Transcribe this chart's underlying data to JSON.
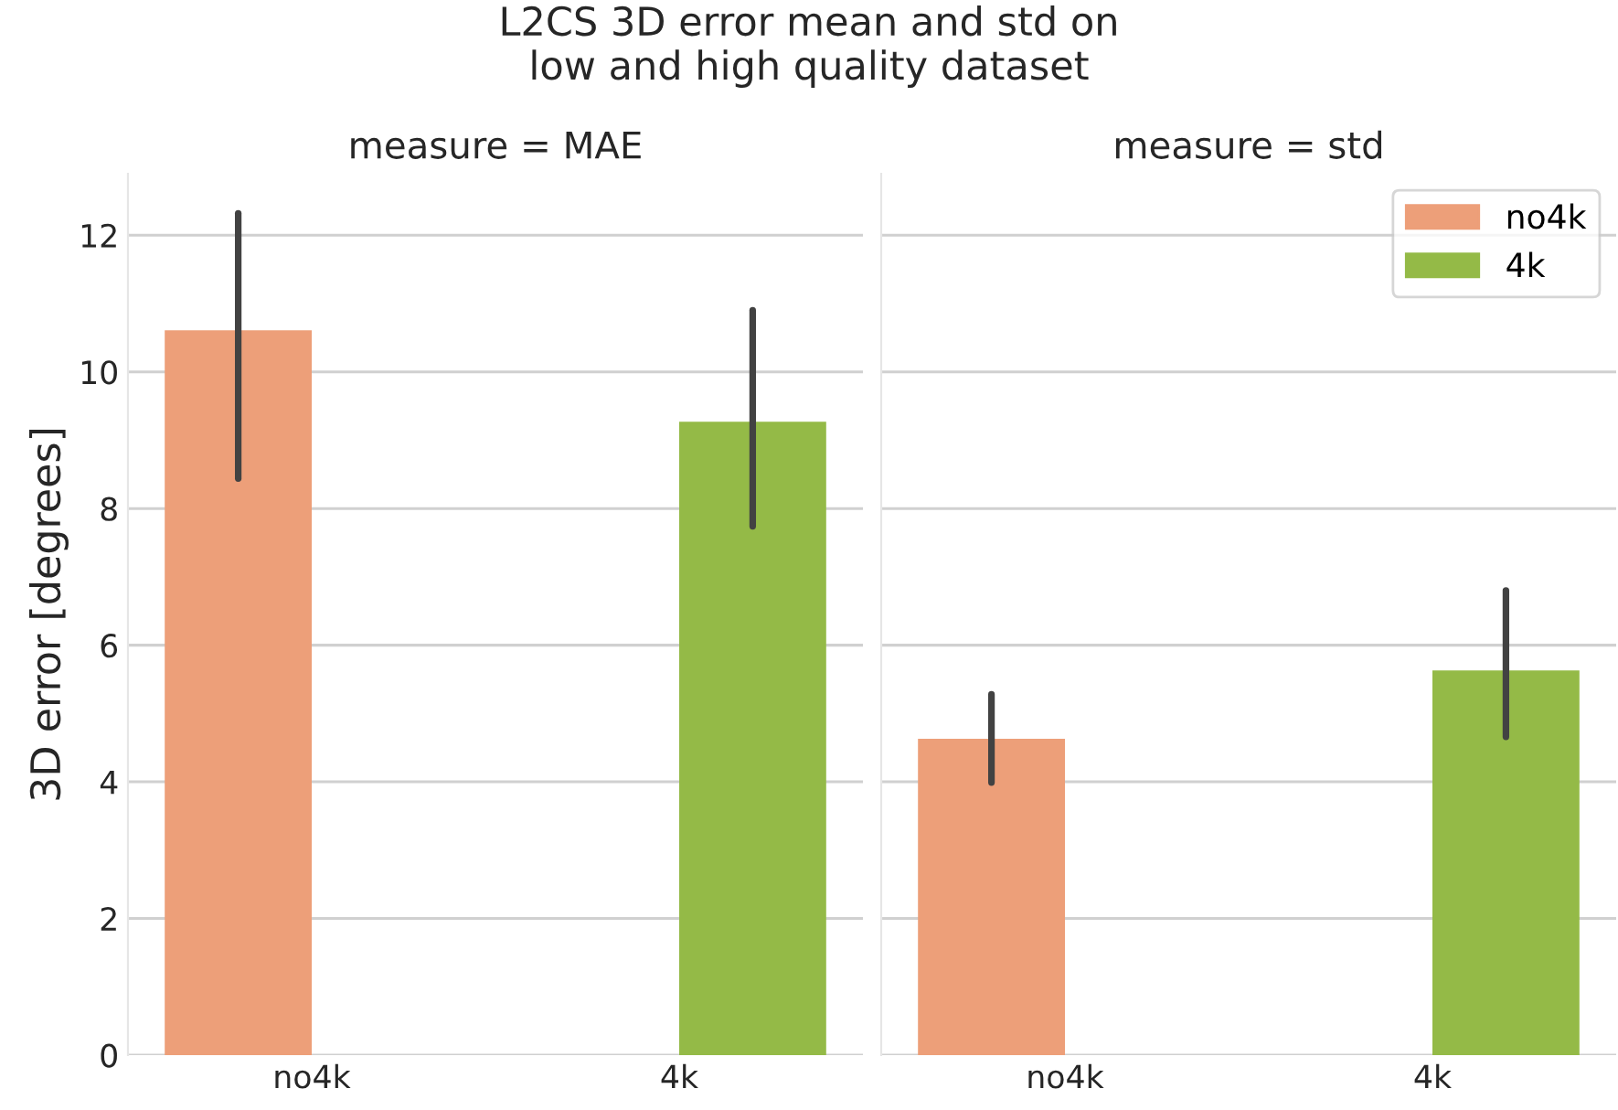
{
  "chart_data": [
    {
      "type": "bar",
      "title": "measure = MAE",
      "ylabel": "3D error [degrees]",
      "annotations": [
        "L2CS 3D error mean and std on\nlow and high quality dataset"
      ],
      "categories": [
        "no4k",
        "4k"
      ],
      "series": [
        {
          "color": "#ed9f79",
          "values": [
            10.61,
            null
          ],
          "errors": [
            [
              8.44,
              12.32
            ],
            null
          ]
        },
        {
          "color": "#94ba47",
          "values": [
            null,
            9.27
          ],
          "errors": [
            null,
            [
              7.74,
              10.9
            ]
          ]
        }
      ],
      "ylim": [
        0,
        12.9
      ],
      "yticks": [
        0,
        2,
        4,
        6,
        8,
        10,
        12
      ],
      "grid": "y"
    },
    {
      "type": "bar",
      "title": "measure = std",
      "categories": [
        "no4k",
        "4k"
      ],
      "series": [
        {
          "name": "no4k",
          "color": "#ed9f79",
          "values": [
            4.63,
            null
          ],
          "errors": [
            [
              3.99,
              5.28
            ],
            null
          ]
        },
        {
          "name": "4k",
          "color": "#94ba47",
          "values": [
            null,
            5.63
          ],
          "errors": [
            null,
            [
              4.66,
              6.8
            ]
          ]
        }
      ],
      "ylim": [
        0,
        12.9
      ],
      "yticks": [
        0,
        2,
        4,
        6,
        8,
        10,
        12
      ],
      "grid": "y",
      "legend": "top right",
      "tick_labels": "x"
    }
  ]
}
